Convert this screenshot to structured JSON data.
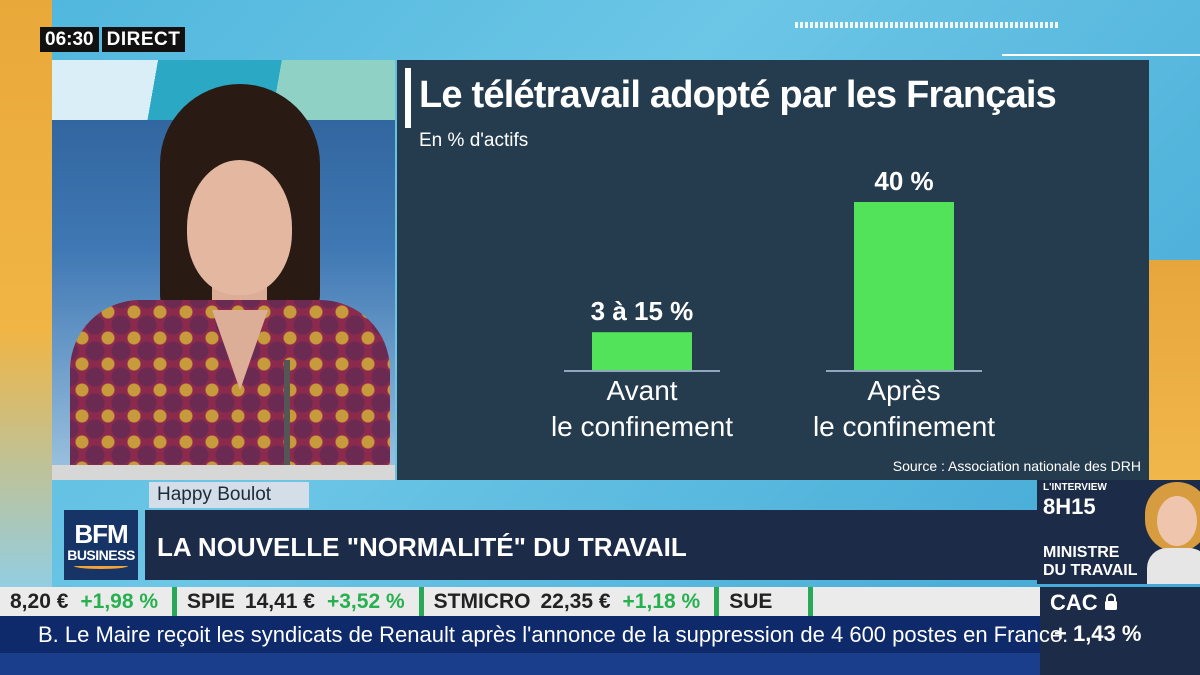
{
  "clock": {
    "time": "06:30",
    "live": "DIRECT"
  },
  "chart_data": {
    "type": "bar",
    "title": "Le télétravail adopté par les Français",
    "subtitle": "En % d'actifs",
    "categories": [
      [
        "Avant",
        "le confinement"
      ],
      [
        "Après",
        "le confinement"
      ]
    ],
    "values": [
      9,
      40
    ],
    "value_labels": [
      "3 à 15 %",
      "40 %"
    ],
    "ylim": [
      0,
      40
    ],
    "bar_color": "#52e35a",
    "source": "Source : Association nationale des DRH"
  },
  "program": {
    "name": "Happy Boulot"
  },
  "logo": {
    "line1": "BFM",
    "line2": "BUSINESS"
  },
  "headline": "LA NOUVELLE \"NORMALITÉ\" DU TRAVAIL",
  "promo": {
    "tag": "L'INTERVIEW",
    "time": "8H15",
    "role_line1": "MINISTRE",
    "role_line2": "DU TRAVAIL"
  },
  "ticker": [
    {
      "name": "",
      "price": "8,20 €",
      "change": "+1,98 %"
    },
    {
      "name": "SPIE",
      "price": "14,41 €",
      "change": "+3,52 %"
    },
    {
      "name": "STMICRO",
      "price": "22,35 €",
      "change": "+1,18 %"
    },
    {
      "name": "SUE",
      "price": "",
      "change": ""
    }
  ],
  "index": {
    "name": "CAC",
    "change": "+ 1,43 %"
  },
  "news": "B. Le Maire reçoit les syndicats de Renault après l'annonce de la suppression de 4 600 postes en France."
}
